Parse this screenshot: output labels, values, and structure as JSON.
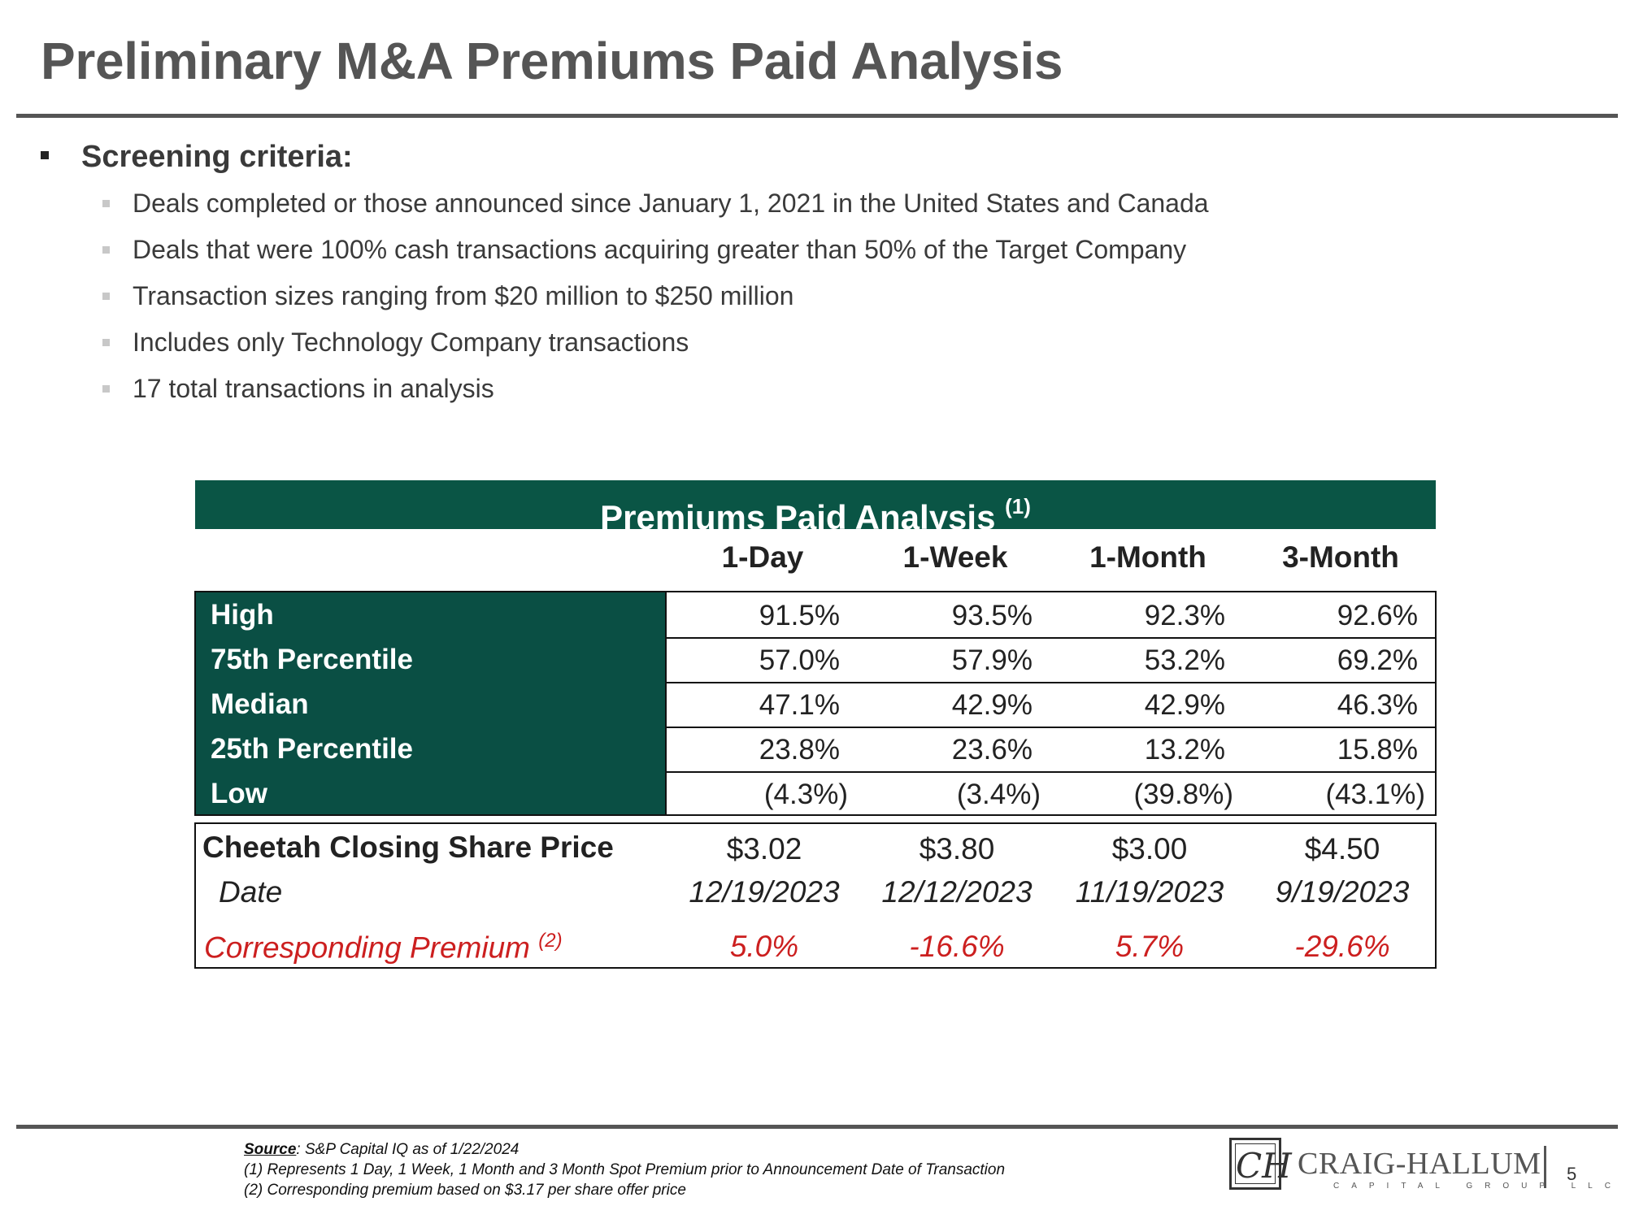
{
  "title": "Preliminary M&A Premiums Paid Analysis",
  "criteria": {
    "heading": "Screening criteria:",
    "items": [
      "Deals completed or those announced since January 1, 2021 in the United States and Canada",
      "Deals that were 100% cash transactions acquiring greater than 50% of the Target Company",
      "Transaction sizes ranging from $20 million to $250 million",
      "Includes only Technology Company transactions",
      "17 total transactions in analysis"
    ]
  },
  "table": {
    "title": "Premiums Paid Analysis",
    "title_note": "(1)",
    "columns": [
      "1-Day",
      "1-Week",
      "1-Month",
      "3-Month"
    ],
    "rows": [
      {
        "label": "High",
        "values": [
          "91.5%",
          "93.5%",
          "92.3%",
          "92.6%"
        ]
      },
      {
        "label": "75th Percentile",
        "values": [
          "57.0%",
          "57.9%",
          "53.2%",
          "69.2%"
        ]
      },
      {
        "label": "Median",
        "values": [
          "47.1%",
          "42.9%",
          "42.9%",
          "46.3%"
        ]
      },
      {
        "label": "25th Percentile",
        "values": [
          "23.8%",
          "23.6%",
          "13.2%",
          "15.8%"
        ]
      },
      {
        "label": "Low",
        "values": [
          "(4.3%)",
          "(3.4%)",
          "(39.8%)",
          "(43.1%)"
        ]
      }
    ],
    "price": {
      "label": "Cheetah Closing Share Price",
      "values": [
        "$3.02",
        "$3.80",
        "$3.00",
        "$4.50"
      ]
    },
    "date": {
      "label": "Date",
      "values": [
        "12/19/2023",
        "12/12/2023",
        "11/19/2023",
        "9/19/2023"
      ]
    },
    "premium": {
      "label": "Corresponding Premium",
      "note": "(2)",
      "values": [
        "5.0%",
        "-16.6%",
        "5.7%",
        "-29.6%"
      ]
    }
  },
  "footnotes": {
    "source_label": "Source",
    "source_text": ": S&P Capital IQ as of 1/22/2024",
    "note1": "(1) Represents 1 Day, 1 Week, 1 Month and 3 Month Spot Premium prior to Announcement Date of Transaction",
    "note2": "(2) Corresponding premium based on $3.17 per share offer price"
  },
  "logo": {
    "name": "CRAIG-HALLUM",
    "sub": "CAPITAL GROUP LLC",
    "mark": "CH"
  },
  "page_number": "5",
  "colors": {
    "header_green": "#0a5545",
    "premium_red": "#cc1f1f",
    "title_gray": "#555555"
  }
}
